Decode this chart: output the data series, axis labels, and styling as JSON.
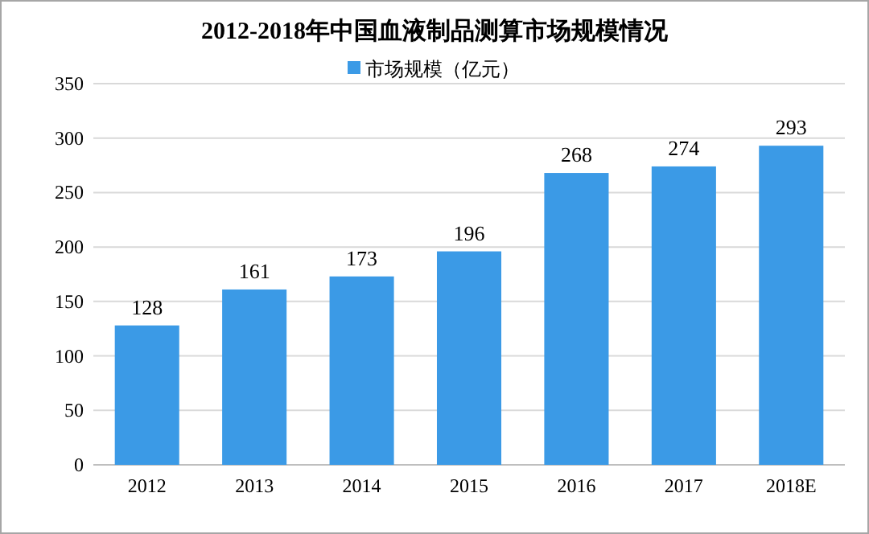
{
  "chart_data": {
    "type": "bar",
    "title": "2012-2018年中国血液制品测算市场规模情况",
    "categories": [
      "2012",
      "2013",
      "2014",
      "2015",
      "2016",
      "2017",
      "2018E"
    ],
    "series": [
      {
        "name": "市场规模（亿元）",
        "color": "#3b9ae6",
        "values": [
          128,
          161,
          173,
          196,
          268,
          274,
          293
        ]
      }
    ],
    "ylim": [
      0,
      350
    ],
    "yticks": [
      0,
      50,
      100,
      150,
      200,
      250,
      300,
      350
    ],
    "grid": "y",
    "legend": "top",
    "data_labels": true
  }
}
